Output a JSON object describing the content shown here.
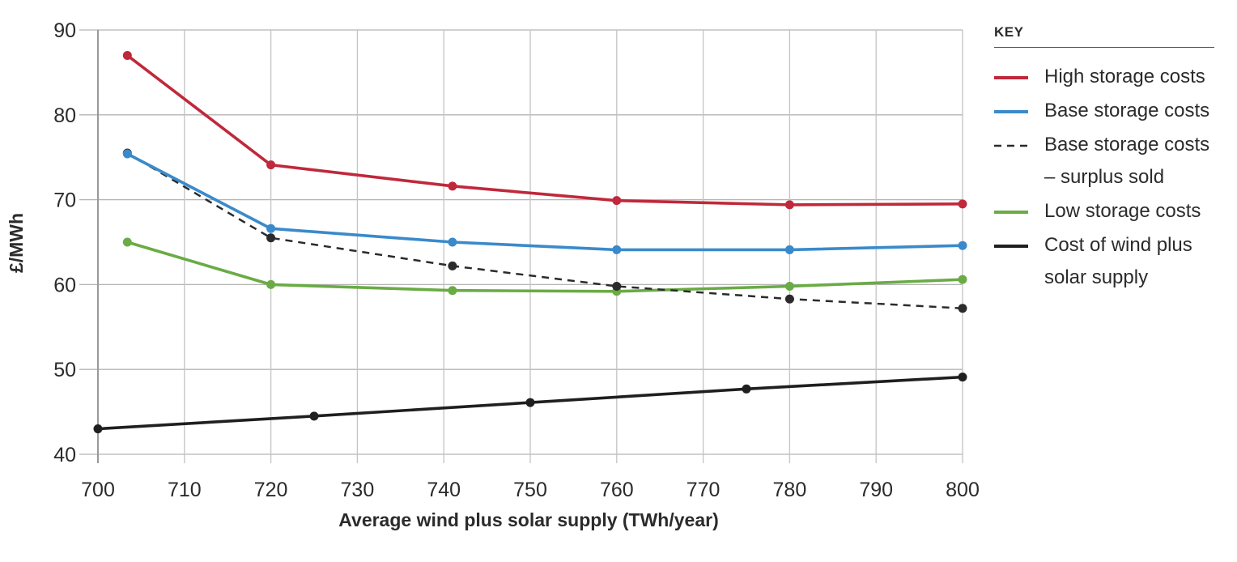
{
  "chart_data": {
    "type": "line",
    "title": "",
    "xlabel": "Average wind plus solar supply (TWh/year)",
    "ylabel": "£/MWh",
    "xlim": [
      700,
      800
    ],
    "ylim": [
      40,
      90
    ],
    "xticks": [
      700,
      710,
      720,
      730,
      740,
      750,
      760,
      770,
      780,
      790,
      800
    ],
    "yticks": [
      40,
      50,
      60,
      70,
      80,
      90
    ],
    "grid": true,
    "legend_title": "KEY",
    "legend_position": "right",
    "series": [
      {
        "name": "High storage costs",
        "color": "#c0283b",
        "style": "solid",
        "x": [
          703.4,
          720,
          741,
          760,
          780,
          800
        ],
        "y": [
          87.0,
          74.1,
          71.6,
          69.9,
          69.4,
          69.5
        ]
      },
      {
        "name": "Base storage costs",
        "color": "#3a8acb",
        "style": "solid",
        "x": [
          703.4,
          720,
          741,
          760,
          780,
          800
        ],
        "y": [
          75.4,
          66.6,
          65.0,
          64.1,
          64.1,
          64.6
        ]
      },
      {
        "name": "Base storage costs – surplus sold",
        "color": "#2b2b2b",
        "style": "dashed",
        "x": [
          703.4,
          720,
          741,
          760,
          780,
          800
        ],
        "y": [
          75.5,
          65.5,
          62.2,
          59.8,
          58.3,
          57.2
        ]
      },
      {
        "name": "Low storage costs",
        "color": "#6aab45",
        "style": "solid",
        "x": [
          703.4,
          720,
          741,
          760,
          780,
          800
        ],
        "y": [
          65.0,
          60.0,
          59.3,
          59.2,
          59.8,
          60.6
        ]
      },
      {
        "name": "Cost of wind plus solar supply",
        "color": "#1f1f1f",
        "style": "solid",
        "x": [
          700,
          725,
          750,
          775,
          800
        ],
        "y": [
          43.0,
          44.5,
          46.1,
          47.7,
          49.1
        ]
      }
    ]
  },
  "legend": {
    "title": "KEY",
    "items": [
      {
        "label": "High storage costs",
        "color": "#c0283b",
        "style": "solid"
      },
      {
        "label": "Base storage costs",
        "color": "#3a8acb",
        "style": "solid"
      },
      {
        "label": "Base storage costs – surplus sold",
        "color": "#2b2b2b",
        "style": "dashed"
      },
      {
        "label": "Low storage costs",
        "color": "#6aab45",
        "style": "solid"
      },
      {
        "label": "Cost of wind plus solar supply",
        "color": "#1f1f1f",
        "style": "solid"
      }
    ]
  }
}
